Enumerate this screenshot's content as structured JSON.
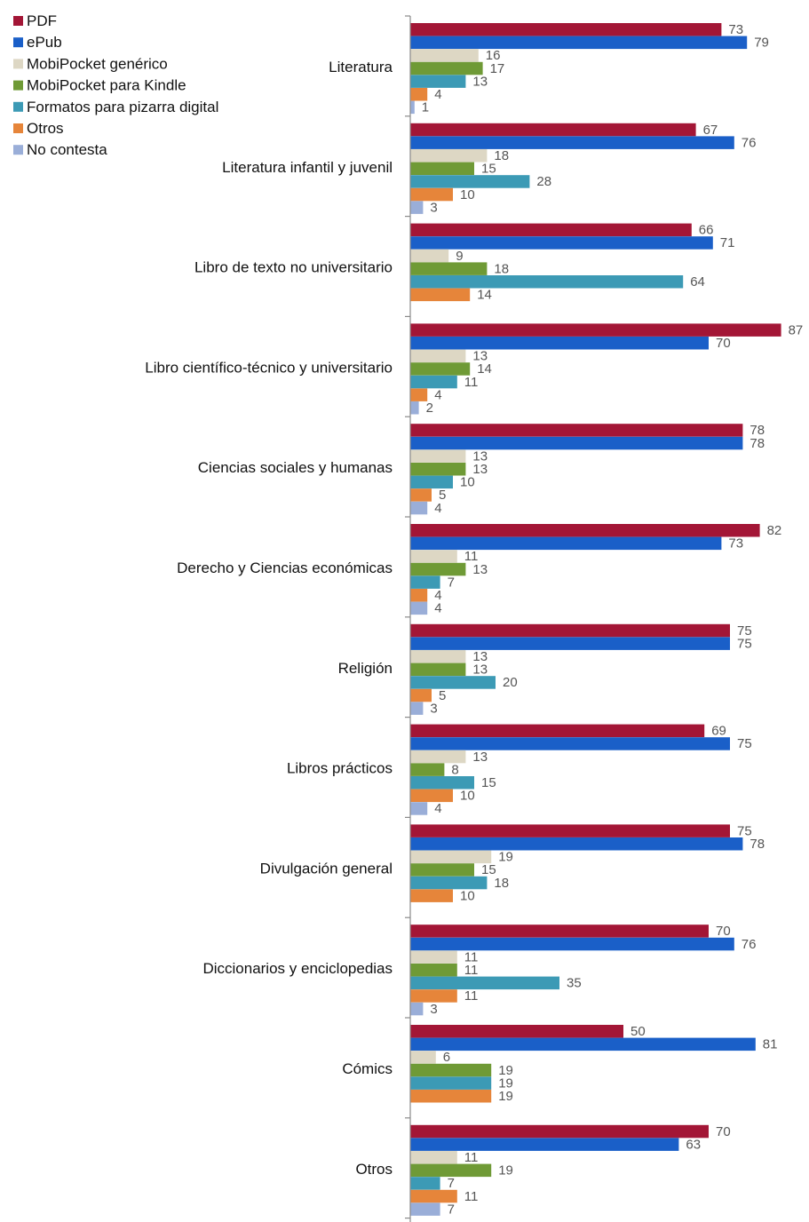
{
  "chart_data": {
    "type": "bar",
    "orientation": "horizontal",
    "title": "",
    "xlabel": "",
    "ylabel": "",
    "xlim": [
      0,
      90
    ],
    "grid": false,
    "legend_position": "top-left",
    "categories": [
      "Literatura",
      "Literatura infantil y juvenil",
      "Libro de texto no universitario",
      "Libro científico-técnico y universitario",
      "Ciencias sociales y humanas",
      "Derecho y Ciencias económicas",
      "Religión",
      "Libros prácticos",
      "Divulgación general",
      "Diccionarios y enciclopedias",
      "Cómics",
      "Otros"
    ],
    "series": [
      {
        "name": "PDF",
        "color": "#a31636",
        "values": [
          73,
          67,
          66,
          87,
          78,
          82,
          75,
          69,
          75,
          70,
          50,
          70
        ]
      },
      {
        "name": "ePub",
        "color": "#1a5fc8",
        "values": [
          79,
          76,
          71,
          70,
          78,
          73,
          75,
          75,
          78,
          76,
          81,
          63
        ]
      },
      {
        "name": "MobiPocket genérico",
        "color": "#ddd7c4",
        "values": [
          16,
          18,
          9,
          13,
          13,
          11,
          13,
          13,
          19,
          11,
          6,
          11
        ]
      },
      {
        "name": "MobiPocket para Kindle",
        "color": "#6f9a36",
        "values": [
          17,
          15,
          18,
          14,
          13,
          13,
          13,
          8,
          15,
          11,
          19,
          19
        ]
      },
      {
        "name": "Formatos para pizarra digital",
        "color": "#3c9ab5",
        "values": [
          13,
          28,
          64,
          11,
          10,
          7,
          20,
          15,
          18,
          35,
          19,
          7
        ]
      },
      {
        "name": "Otros",
        "color": "#e6853a",
        "values": [
          4,
          10,
          14,
          4,
          5,
          4,
          5,
          10,
          10,
          11,
          19,
          11
        ]
      },
      {
        "name": "No contesta",
        "color": "#9aaed8",
        "values": [
          1,
          3,
          null,
          2,
          4,
          4,
          3,
          4,
          null,
          3,
          null,
          7
        ]
      }
    ]
  }
}
